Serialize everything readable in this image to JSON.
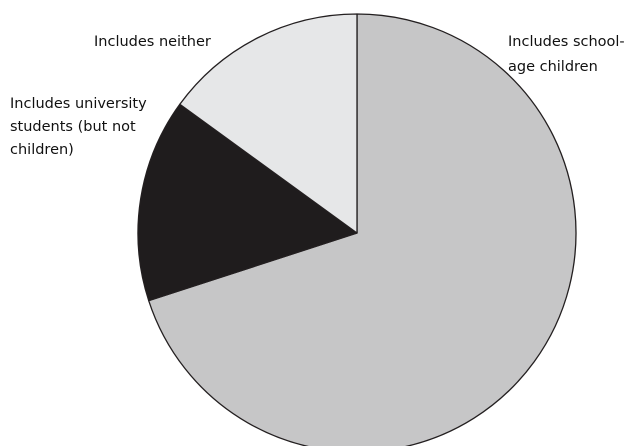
{
  "chart_data": {
    "type": "pie",
    "title": "",
    "slices": [
      {
        "label_lines": [
          "Includes school-",
          "age children"
        ],
        "value": 70,
        "color": "#c6c6c7"
      },
      {
        "label_lines": [
          "Includes university",
          "students (but not",
          "children)"
        ],
        "value": 15,
        "color": "#1f1c1d"
      },
      {
        "label_lines": [
          "Includes neither"
        ],
        "value": 15,
        "color": "#e6e7e8"
      }
    ],
    "start_angle_deg": 0,
    "direction": "clockwise",
    "slice_border_color": "#231f20",
    "legend": "none (direct labels)"
  }
}
